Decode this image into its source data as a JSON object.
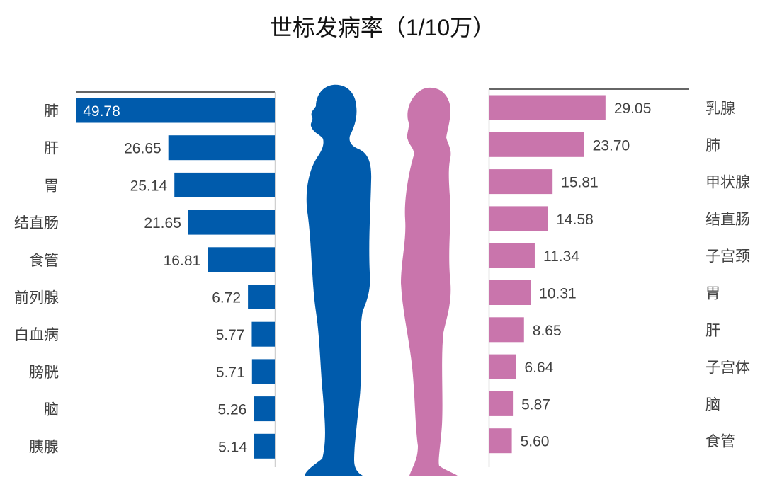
{
  "chart_data": [
    {
      "type": "bar",
      "orientation": "horizontal",
      "title": "世标发病率（1/10万）",
      "categories": [
        "肺",
        "肝",
        "胃",
        "结直肠",
        "食管",
        "前列腺",
        "白血病",
        "膀胱",
        "脑",
        "胰腺"
      ],
      "values": [
        49.78,
        26.65,
        25.14,
        21.65,
        16.81,
        6.72,
        5.77,
        5.71,
        5.26,
        5.14
      ],
      "value_labels": [
        "49.78",
        "26.65",
        "25.14",
        "21.65",
        "16.81",
        "6.72",
        "5.77",
        "5.71",
        "5.26",
        "5.14"
      ],
      "direction": "leftward",
      "color": "#005BAC"
    },
    {
      "type": "bar",
      "orientation": "horizontal",
      "categories": [
        "乳腺",
        "肺",
        "甲状腺",
        "结直肠",
        "子宫颈",
        "胃",
        "肝",
        "子宫体",
        "脑",
        "食管"
      ],
      "values": [
        29.05,
        23.7,
        15.81,
        14.58,
        11.34,
        10.31,
        8.65,
        6.64,
        5.87,
        5.6
      ],
      "value_labels": [
        "29.05",
        "23.70",
        "15.81",
        "14.58",
        "11.34",
        "10.31",
        "8.65",
        "6.64",
        "5.87",
        "5.60"
      ],
      "direction": "rightward",
      "color": "#C975AC"
    }
  ],
  "icons": {
    "male": "male-silhouette-icon",
    "female": "female-silhouette-icon"
  }
}
